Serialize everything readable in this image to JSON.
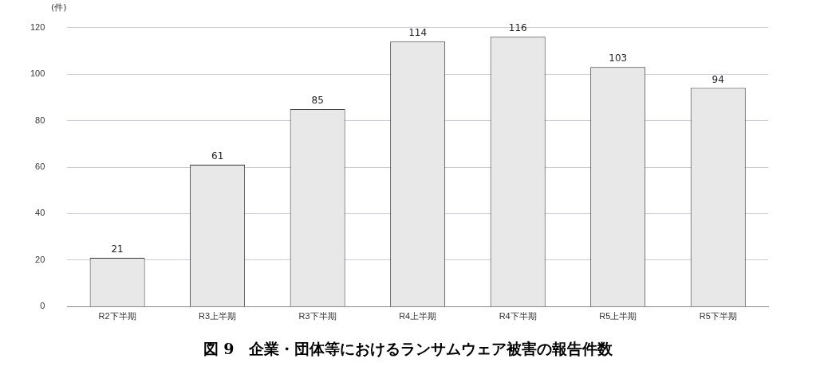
{
  "chart_data": {
    "type": "bar",
    "title": "図 9　企業・団体等におけるランサムウェア被害の報告件数",
    "ylabel": "(件)",
    "categories": [
      "R2下半期",
      "R3上半期",
      "R3下半期",
      "R4上半期",
      "R4下半期",
      "R5上半期",
      "R5下半期"
    ],
    "values": [
      21,
      61,
      85,
      114,
      116,
      103,
      94
    ],
    "color": "#e8e8e8",
    "ylim": [
      0,
      120
    ],
    "yticks": [
      0,
      20,
      40,
      60,
      80,
      100,
      120
    ],
    "grid": "y",
    "data_labels": true
  }
}
